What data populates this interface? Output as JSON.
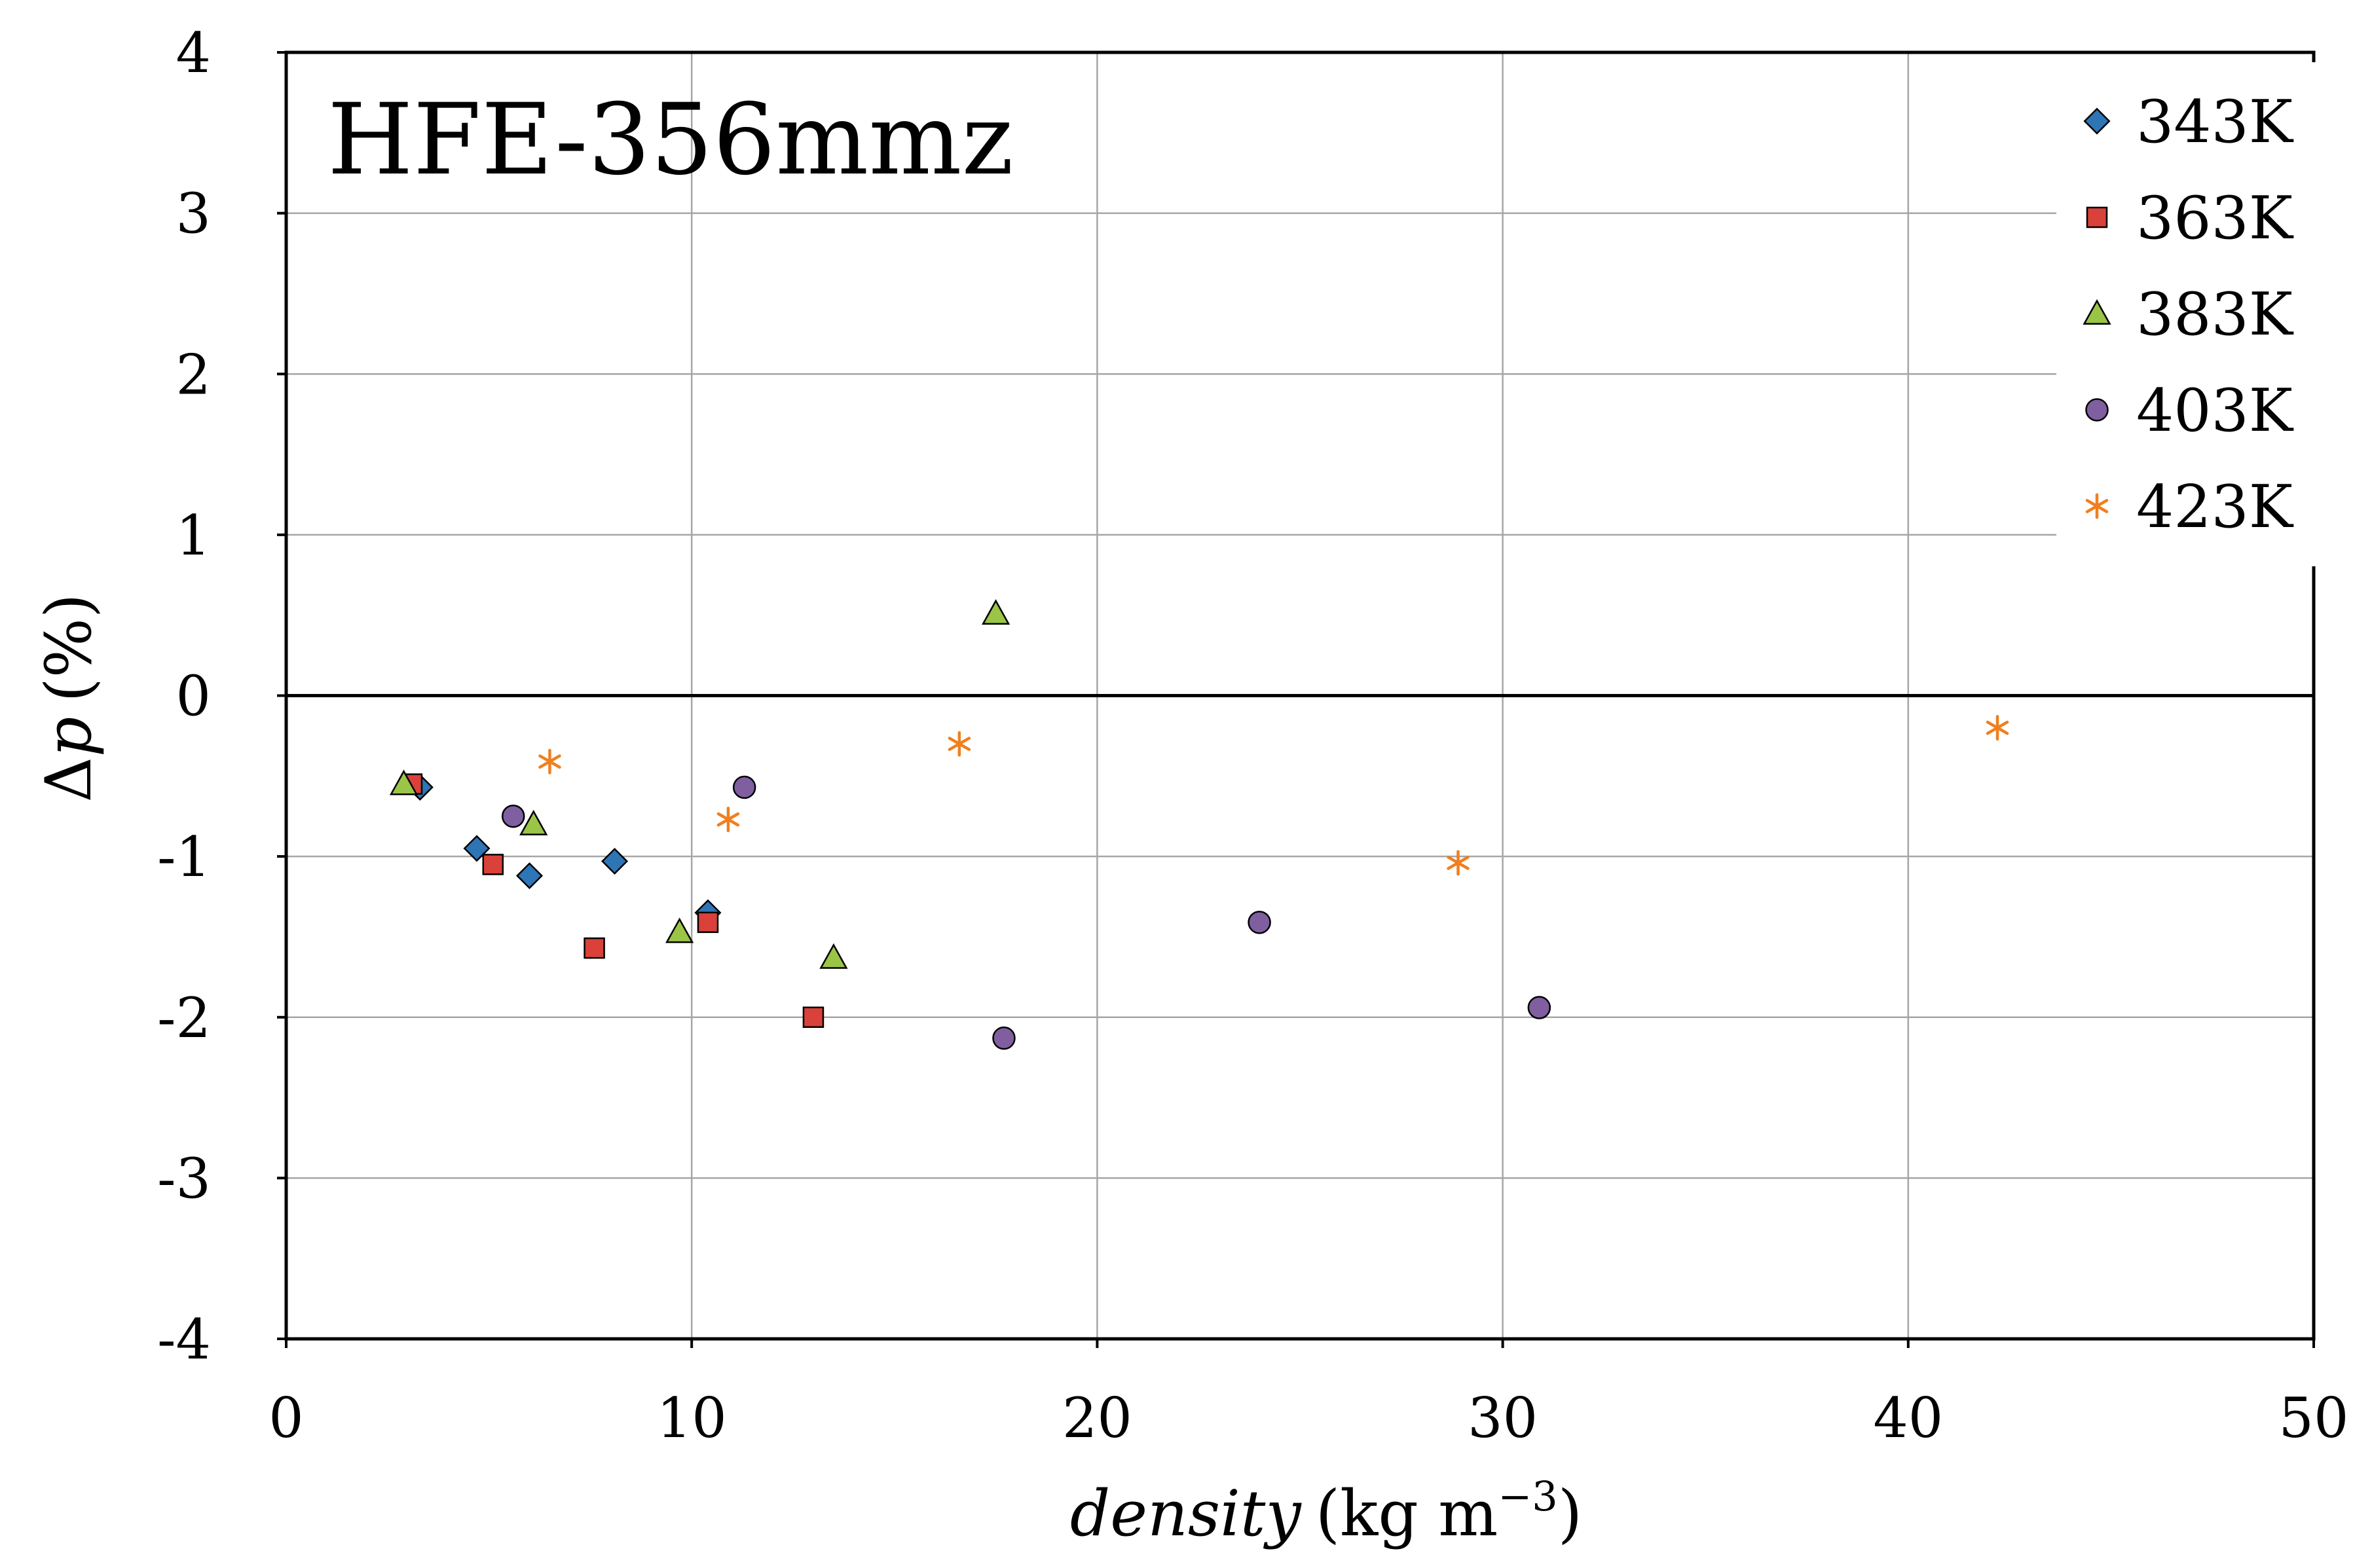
{
  "chart_data": {
    "type": "scatter",
    "title": "HFE-356mmz",
    "xlabel_italic": "density",
    "xlabel_unit": "(kg m",
    "xlabel_exp": "−3",
    "xlabel_close": ")",
    "ylabel_delta": "Δ",
    "ylabel_var": "p",
    "ylabel_unit": "(%)",
    "xlim": [
      0,
      50
    ],
    "ylim": [
      -4,
      4
    ],
    "xticks": [
      0,
      10,
      20,
      30,
      40,
      50
    ],
    "yticks": [
      -4,
      -3,
      -2,
      -1,
      0,
      1,
      2,
      3,
      4
    ],
    "grid": true,
    "legend_position": "top-right",
    "series": [
      {
        "name": "343K",
        "marker": "diamond",
        "color": "#2e75b6",
        "points": [
          [
            3.3,
            -0.57
          ],
          [
            4.7,
            -0.95
          ],
          [
            6.0,
            -1.12
          ],
          [
            8.1,
            -1.03
          ],
          [
            10.4,
            -1.35
          ]
        ]
      },
      {
        "name": "363K",
        "marker": "square",
        "color": "#d9413a",
        "points": [
          [
            3.1,
            -0.55
          ],
          [
            5.1,
            -1.05
          ],
          [
            7.6,
            -1.57
          ],
          [
            10.4,
            -1.41
          ],
          [
            13.0,
            -2.0
          ]
        ]
      },
      {
        "name": "383K",
        "marker": "triangle",
        "color": "#9bc547",
        "points": [
          [
            2.9,
            -0.55
          ],
          [
            6.1,
            -0.8
          ],
          [
            9.7,
            -1.47
          ],
          [
            13.5,
            -1.63
          ],
          [
            17.5,
            0.51
          ]
        ]
      },
      {
        "name": "403K",
        "marker": "circle",
        "color": "#7f5fa0",
        "points": [
          [
            5.6,
            -0.75
          ],
          [
            11.3,
            -0.57
          ],
          [
            17.7,
            -2.13
          ],
          [
            24.0,
            -1.41
          ],
          [
            30.9,
            -1.94
          ]
        ]
      },
      {
        "name": "423K",
        "marker": "asterisk",
        "color": "#f07f1e",
        "points": [
          [
            6.5,
            -0.41
          ],
          [
            10.9,
            -0.77
          ],
          [
            16.6,
            -0.3
          ],
          [
            28.9,
            -1.04
          ],
          [
            42.2,
            -0.2
          ]
        ]
      }
    ]
  }
}
